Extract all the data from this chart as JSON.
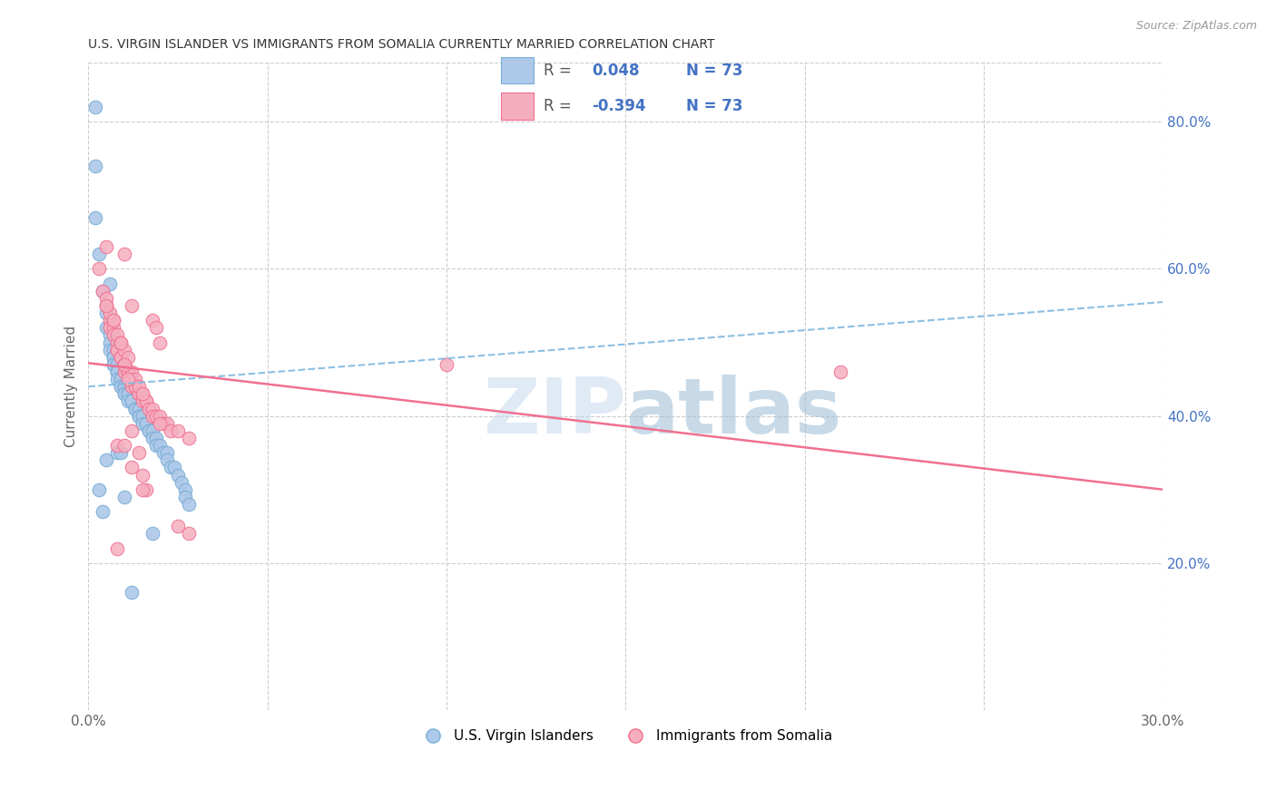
{
  "title": "U.S. VIRGIN ISLANDER VS IMMIGRANTS FROM SOMALIA CURRENTLY MARRIED CORRELATION CHART",
  "source": "Source: ZipAtlas.com",
  "ylabel": "Currently Married",
  "xlim": [
    0.0,
    0.3
  ],
  "ylim": [
    0.0,
    0.88
  ],
  "xticks": [
    0.0,
    0.05,
    0.1,
    0.15,
    0.2,
    0.25,
    0.3
  ],
  "xticklabels": [
    "0.0%",
    "",
    "",
    "",
    "",
    "",
    "30.0%"
  ],
  "yticks_right": [
    0.2,
    0.4,
    0.6,
    0.8
  ],
  "ytick_right_labels": [
    "20.0%",
    "40.0%",
    "60.0%",
    "80.0%"
  ],
  "legend_label1": "U.S. Virgin Islanders",
  "legend_label2": "Immigrants from Somalia",
  "R1": 0.048,
  "N1": 73,
  "R2": -0.394,
  "N2": 73,
  "color_blue": "#adc8e8",
  "color_pink": "#f5aec0",
  "color_blue_edge": "#7aaed6",
  "color_pink_edge": "#f07090",
  "color_blue_line": "#80b8e0",
  "color_pink_line": "#f07090",
  "color_blue_text": "#4472c4",
  "title_fontsize": 10,
  "watermark_zip": "ZIP",
  "watermark_atlas": "atlas",
  "blue_trend_x": [
    0.0,
    0.3
  ],
  "blue_trend_y": [
    0.44,
    0.555
  ],
  "pink_trend_x": [
    0.0,
    0.3
  ],
  "pink_trend_y": [
    0.472,
    0.3
  ],
  "blue_scatter_x": [
    0.002,
    0.002,
    0.003,
    0.004,
    0.005,
    0.005,
    0.005,
    0.006,
    0.006,
    0.006,
    0.006,
    0.007,
    0.007,
    0.007,
    0.007,
    0.007,
    0.008,
    0.008,
    0.008,
    0.008,
    0.008,
    0.009,
    0.009,
    0.009,
    0.009,
    0.01,
    0.01,
    0.01,
    0.01,
    0.011,
    0.011,
    0.011,
    0.012,
    0.012,
    0.012,
    0.013,
    0.013,
    0.013,
    0.014,
    0.014,
    0.014,
    0.015,
    0.015,
    0.015,
    0.016,
    0.016,
    0.017,
    0.017,
    0.018,
    0.018,
    0.019,
    0.019,
    0.02,
    0.021,
    0.022,
    0.022,
    0.023,
    0.024,
    0.025,
    0.026,
    0.027,
    0.027,
    0.028,
    0.003,
    0.004,
    0.005,
    0.002,
    0.006,
    0.018,
    0.008,
    0.009,
    0.01,
    0.012
  ],
  "blue_scatter_y": [
    0.74,
    0.67,
    0.62,
    0.57,
    0.55,
    0.54,
    0.52,
    0.52,
    0.51,
    0.5,
    0.49,
    0.49,
    0.48,
    0.48,
    0.47,
    0.47,
    0.47,
    0.46,
    0.46,
    0.46,
    0.45,
    0.45,
    0.45,
    0.44,
    0.44,
    0.44,
    0.44,
    0.43,
    0.43,
    0.43,
    0.43,
    0.42,
    0.42,
    0.42,
    0.42,
    0.41,
    0.41,
    0.41,
    0.41,
    0.4,
    0.4,
    0.4,
    0.4,
    0.39,
    0.39,
    0.39,
    0.38,
    0.38,
    0.38,
    0.37,
    0.37,
    0.36,
    0.36,
    0.35,
    0.35,
    0.34,
    0.33,
    0.33,
    0.32,
    0.31,
    0.3,
    0.29,
    0.28,
    0.3,
    0.27,
    0.34,
    0.82,
    0.58,
    0.24,
    0.35,
    0.35,
    0.29,
    0.16
  ],
  "pink_scatter_x": [
    0.003,
    0.004,
    0.005,
    0.005,
    0.006,
    0.006,
    0.007,
    0.007,
    0.008,
    0.008,
    0.008,
    0.009,
    0.009,
    0.01,
    0.01,
    0.01,
    0.011,
    0.011,
    0.012,
    0.012,
    0.012,
    0.013,
    0.013,
    0.014,
    0.014,
    0.015,
    0.015,
    0.016,
    0.016,
    0.017,
    0.018,
    0.018,
    0.019,
    0.02,
    0.021,
    0.022,
    0.023,
    0.025,
    0.028,
    0.007,
    0.008,
    0.009,
    0.01,
    0.011,
    0.012,
    0.013,
    0.014,
    0.015,
    0.005,
    0.006,
    0.018,
    0.019,
    0.02,
    0.1,
    0.21,
    0.005,
    0.007,
    0.009,
    0.01,
    0.011,
    0.012,
    0.014,
    0.015,
    0.016,
    0.01,
    0.008,
    0.012,
    0.015,
    0.02,
    0.025,
    0.028,
    0.008,
    0.01
  ],
  "pink_scatter_y": [
    0.6,
    0.57,
    0.55,
    0.63,
    0.53,
    0.52,
    0.52,
    0.51,
    0.5,
    0.49,
    0.49,
    0.48,
    0.48,
    0.47,
    0.47,
    0.46,
    0.46,
    0.46,
    0.55,
    0.45,
    0.44,
    0.44,
    0.44,
    0.43,
    0.43,
    0.43,
    0.42,
    0.42,
    0.42,
    0.41,
    0.41,
    0.4,
    0.4,
    0.4,
    0.39,
    0.39,
    0.38,
    0.38,
    0.37,
    0.53,
    0.51,
    0.5,
    0.49,
    0.48,
    0.46,
    0.45,
    0.44,
    0.43,
    0.56,
    0.54,
    0.53,
    0.52,
    0.5,
    0.47,
    0.46,
    0.55,
    0.53,
    0.5,
    0.47,
    0.45,
    0.38,
    0.35,
    0.32,
    0.3,
    0.62,
    0.36,
    0.33,
    0.3,
    0.39,
    0.25,
    0.24,
    0.22,
    0.36
  ]
}
